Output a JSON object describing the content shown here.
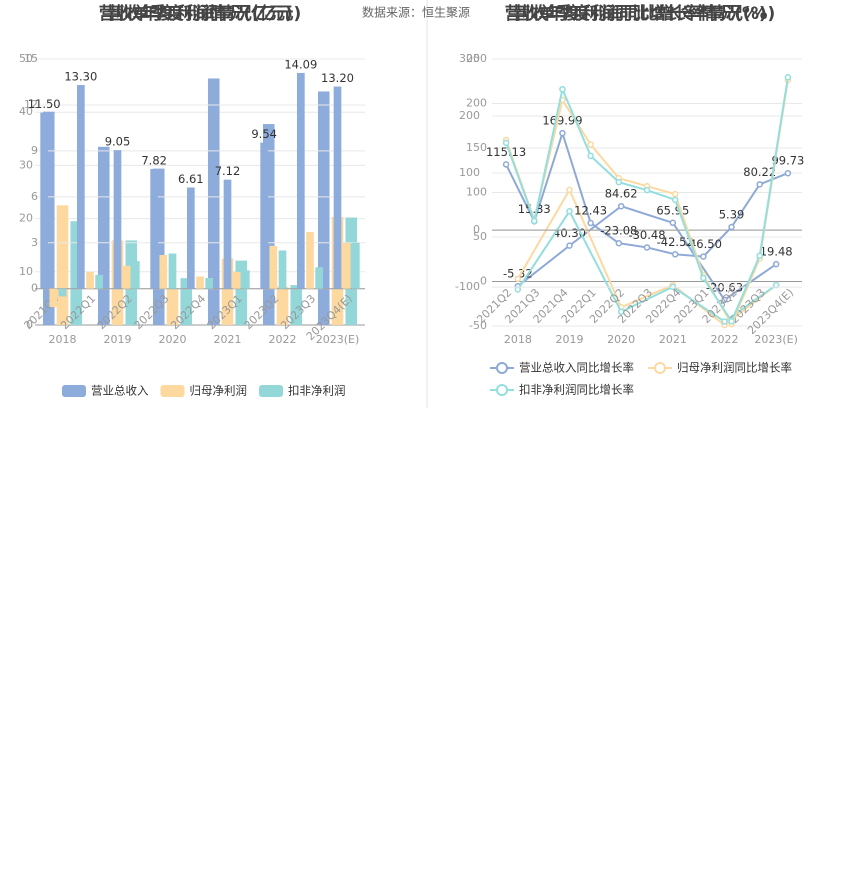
{
  "chart_data": [
    {
      "type": "bar",
      "title": "营收年度利润情况(亿元)",
      "source": "数据来源：恒生聚源",
      "categories": [
        "2018",
        "2019",
        "2020",
        "2021",
        "2022",
        "2023(E)"
      ],
      "series": [
        {
          "name": "营业总收入",
          "color": "#8eacdb",
          "values": [
            40.1,
            33.5,
            29.4,
            46.34,
            37.77,
            43.9
          ]
        },
        {
          "name": "归母净利润",
          "color": "#fdd9a0",
          "values": [
            22.5,
            15.9,
            6.8,
            12.5,
            7.2,
            20.3
          ]
        },
        {
          "name": "扣非净利润",
          "color": "#93d7d8",
          "values": [
            19.5,
            15.9,
            8.8,
            12.1,
            7.5,
            20.2
          ]
        }
      ],
      "ylim": [
        0,
        50
      ],
      "yticks": [
        0,
        10,
        20,
        30,
        40,
        50
      ],
      "grid": true,
      "legend": "bottom"
    },
    {
      "type": "bar",
      "title": "营收单季度利润情况(亿元)",
      "categories": [
        "2021Q4",
        "2022Q1",
        "2022Q2",
        "2022Q3",
        "2022Q4",
        "2023Q1",
        "2023Q2",
        "2023Q3",
        "2023Q4(E)"
      ],
      "series": [
        {
          "color": "#8eacdb",
          "values": [
            11.5,
            13.3,
            9.05,
            7.82,
            6.61,
            7.12,
            9.54,
            14.09,
            13.2
          ],
          "value_labels": [
            "11.50",
            "13.30",
            "9.05",
            "7.82",
            "6.61",
            "7.12",
            "9.54",
            "14.09",
            "13.20"
          ]
        },
        {
          "color": "#fdd9a0",
          "values": [
            -1.2,
            1.1,
            1.5,
            2.2,
            0.8,
            1.1,
            2.8,
            3.7,
            3.0
          ]
        },
        {
          "color": "#93d7d8",
          "values": [
            -0.5,
            0.9,
            1.8,
            2.3,
            0.7,
            1.2,
            2.5,
            1.4,
            3.0
          ]
        }
      ],
      "ylim": [
        -2.5,
        15
      ],
      "yticks": [
        0,
        3,
        6,
        9,
        12,
        15
      ],
      "grid": true
    },
    {
      "type": "line",
      "title": "营收年度利润同比增长率情况(%)",
      "categories": [
        "2018",
        "2019",
        "2020",
        "2021",
        "2022",
        "2023(E)"
      ],
      "series": [
        {
          "name": "营业总收入同比增长率",
          "color": "#8fa9d6",
          "values": [
            -5.32,
            40.3,
            84.62,
            65.95,
            -20.63,
            19.48
          ],
          "value_labels": [
            "-5.32",
            "40.30",
            "84.62",
            "65.95",
            "-20.63",
            "19.48"
          ]
        },
        {
          "name": "归母净利润同比增长率",
          "color": "#fcd9a1",
          "values": [
            3,
            103,
            -29,
            -4,
            -49,
            -4
          ]
        },
        {
          "name": "扣非净利润同比增长率",
          "color": "#93dede",
          "values": [
            -9,
            79,
            -34,
            -6,
            -45,
            -4
          ]
        }
      ],
      "ylim": [
        -50,
        250
      ],
      "yticks": [
        -50,
        0,
        50,
        100,
        150,
        200,
        250
      ],
      "grid": true,
      "legend": "bottom"
    },
    {
      "type": "line",
      "title": "营收单季度利润同比增长率情况(%)",
      "categories": [
        "2021Q2",
        "2021Q3",
        "2021Q4",
        "2022Q1",
        "2022Q2",
        "2022Q3",
        "2022Q4",
        "2023Q1",
        "2023Q2",
        "2023Q3",
        "2023Q4(E)"
      ],
      "series": [
        {
          "color": "#8fa9d6",
          "values": [
            115.13,
            15.33,
            169.99,
            12.43,
            -23.08,
            -30.48,
            -42.52,
            -46.5,
            5.39,
            80.22,
            99.73
          ],
          "value_labels": [
            "115.13",
            "15.33",
            "169.99",
            "12.43",
            "-23.08",
            "-30.48",
            "-42.52",
            "-46.50",
            "5.39",
            "80.22",
            "99.73"
          ]
        },
        {
          "color": "#fcd9a1",
          "values": [
            158,
            18,
            228,
            150,
            91,
            77,
            63,
            -79,
            -165,
            -50,
            263
          ]
        },
        {
          "color": "#93dede",
          "values": [
            153,
            16,
            247,
            130,
            84,
            70,
            53,
            -84,
            -160,
            -45,
            268
          ]
        }
      ],
      "ylim": [
        -170,
        300
      ],
      "yticks": [
        -100,
        0,
        100,
        200,
        300
      ],
      "grid": true
    }
  ]
}
